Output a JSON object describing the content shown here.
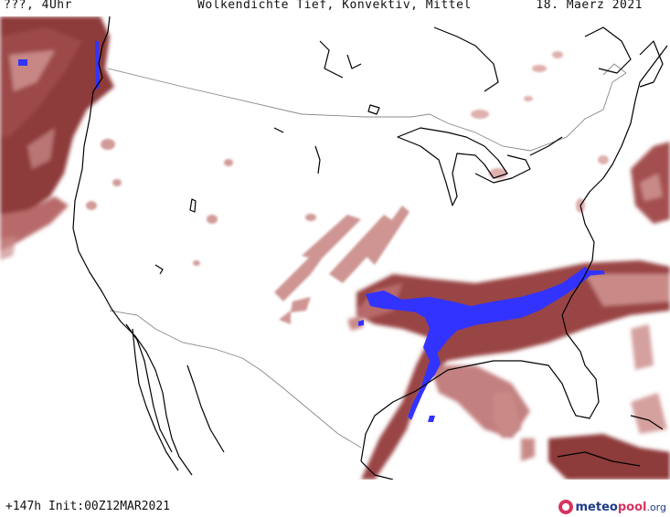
{
  "header": {
    "valid_time": "???, 4Uhr",
    "title": "Wolkendichte   Tief, Konvektiv, Mittel",
    "date": "18. Maerz 2021"
  },
  "footer": {
    "run_info": "+147h  Init:00Z12MAR2021",
    "logo": {
      "part1": "meteo",
      "part2": "pool",
      "part3": ".org"
    }
  },
  "colors": {
    "cloud_dense": "#8e3a3a",
    "cloud_mid": "#b86a6a",
    "cloud_light": "#e3b1ae",
    "convective": "#3333ff",
    "coastline": "#000000",
    "border": "#888888",
    "background": "#ffffff"
  }
}
